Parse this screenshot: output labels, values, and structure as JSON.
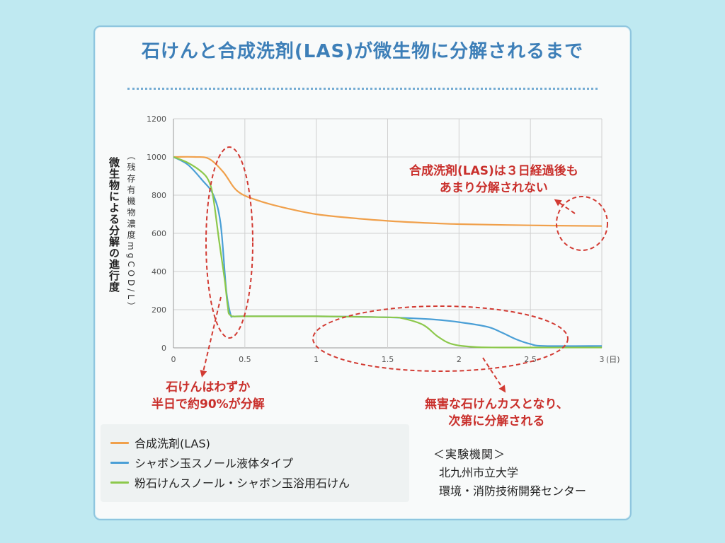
{
  "page": {
    "title": "石けんと合成洗剤(LAS)が微生物に分解されるまで"
  },
  "annotations": {
    "las_note": [
      "合成洗剤(LAS)は３日経過後も",
      "あまり分解されない"
    ],
    "soap_note": [
      "石けんはわずか",
      "半日で約90%が分解"
    ],
    "residue_note": [
      "無害な石けんカスとなり、",
      "次第に分解される"
    ]
  },
  "credit": {
    "head": "＜実験機関＞",
    "lines": [
      "北九州市立大学",
      "環境・消防技術開発センター"
    ]
  },
  "colors": {
    "las": "#f0a04b",
    "liquid": "#4a9fd6",
    "powder": "#8cc84b",
    "annotation": "#d23b33",
    "title": "#3d7fb8"
  },
  "chart_data": {
    "type": "line",
    "title": "",
    "ylabel": "微生物による分解の進行度",
    "ylabel_sub": "（残存有機物濃度mgCOD/L）",
    "xlabel": "",
    "x_unit": "(日)",
    "xlim": [
      0,
      3
    ],
    "ylim": [
      0,
      1200
    ],
    "xticks": [
      "0",
      "0.5",
      "1",
      "1.5",
      "2",
      "2.5",
      "3"
    ],
    "yticks": [
      "0",
      "200",
      "400",
      "600",
      "800",
      "1000",
      "1200"
    ],
    "grid": true,
    "legend_position": "bottom-left",
    "series": [
      {
        "name": "合成洗剤(LAS)",
        "color_key": "las",
        "x": [
          0,
          0.15,
          0.25,
          0.35,
          0.45,
          0.6,
          0.8,
          1.0,
          1.25,
          1.5,
          1.75,
          2.0,
          2.5,
          3.0
        ],
        "y": [
          1000,
          1000,
          990,
          920,
          820,
          770,
          730,
          700,
          680,
          665,
          655,
          648,
          642,
          638
        ]
      },
      {
        "name": "シャボン玉スノール液体タイプ",
        "color_key": "liquid",
        "x": [
          0,
          0.1,
          0.2,
          0.28,
          0.33,
          0.37,
          0.4,
          0.42,
          0.5,
          1.0,
          1.5,
          1.8,
          2.0,
          2.2,
          2.3,
          2.4,
          2.5,
          2.6,
          3.0
        ],
        "y": [
          1000,
          960,
          880,
          800,
          650,
          300,
          175,
          165,
          165,
          165,
          160,
          150,
          135,
          110,
          80,
          45,
          20,
          10,
          10
        ]
      },
      {
        "name": "粉石けんスノール・シャボン玉浴用石けん",
        "color_key": "powder",
        "x": [
          0,
          0.1,
          0.2,
          0.25,
          0.28,
          0.32,
          0.36,
          0.38,
          0.4,
          0.5,
          1.0,
          1.5,
          1.6,
          1.75,
          1.85,
          1.95,
          2.1,
          2.3,
          3.0
        ],
        "y": [
          1000,
          970,
          920,
          870,
          780,
          560,
          350,
          220,
          170,
          165,
          165,
          160,
          155,
          120,
          60,
          20,
          5,
          2,
          2
        ]
      }
    ]
  }
}
